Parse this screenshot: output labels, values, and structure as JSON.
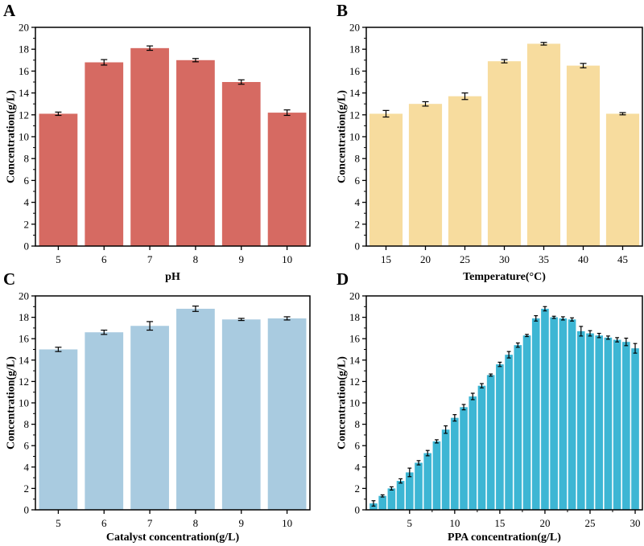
{
  "chart_data": [
    {
      "panel": "A",
      "type": "bar",
      "xlabel": "pH",
      "ylabel": "Concentration(g/L)",
      "ylim": [
        0,
        20
      ],
      "yticks": [
        0,
        2,
        4,
        6,
        8,
        10,
        12,
        14,
        16,
        18,
        20
      ],
      "categories": [
        "5",
        "6",
        "7",
        "8",
        "9",
        "10"
      ],
      "values": [
        12.1,
        16.8,
        18.1,
        17.0,
        15.0,
        12.2
      ],
      "errors": [
        0.15,
        0.25,
        0.2,
        0.15,
        0.2,
        0.25
      ],
      "color": "#d66a62"
    },
    {
      "panel": "B",
      "type": "bar",
      "xlabel": "Temperature(°C)",
      "ylabel": "Concentration(g/L)",
      "ylim": [
        0,
        20
      ],
      "yticks": [
        0,
        2,
        4,
        6,
        8,
        10,
        12,
        14,
        16,
        18,
        20
      ],
      "categories": [
        "15",
        "20",
        "25",
        "30",
        "35",
        "40",
        "45"
      ],
      "values": [
        12.1,
        13.0,
        13.7,
        16.9,
        18.5,
        16.5,
        12.1
      ],
      "errors": [
        0.3,
        0.2,
        0.3,
        0.15,
        0.12,
        0.2,
        0.1
      ],
      "color": "#f7dc9e"
    },
    {
      "panel": "C",
      "type": "bar",
      "xlabel": "Catalyst concentration(g/L)",
      "ylabel": "Concentration(g/L)",
      "ylim": [
        0,
        20
      ],
      "yticks": [
        0,
        2,
        4,
        6,
        8,
        10,
        12,
        14,
        16,
        18,
        20
      ],
      "categories": [
        "5",
        "6",
        "7",
        "8",
        "9",
        "10"
      ],
      "values": [
        15.0,
        16.6,
        17.2,
        18.8,
        17.8,
        17.9
      ],
      "errors": [
        0.2,
        0.2,
        0.4,
        0.25,
        0.1,
        0.15
      ],
      "color": "#a9cbe0"
    },
    {
      "panel": "D",
      "type": "bar",
      "xlabel": "PPA concentration(g/L)",
      "ylabel": "Concentration(g/L)",
      "ylim": [
        0,
        20
      ],
      "yticks": [
        0,
        2,
        4,
        6,
        8,
        10,
        12,
        14,
        16,
        18,
        20
      ],
      "xlim": [
        0.2,
        30.8
      ],
      "xticks": [
        5,
        10,
        15,
        20,
        25,
        30
      ],
      "x": [
        1,
        2,
        3,
        4,
        5,
        6,
        7,
        8,
        9,
        10,
        11,
        12,
        13,
        14,
        15,
        16,
        17,
        18,
        19,
        20,
        21,
        22,
        23,
        24,
        25,
        26,
        27,
        28,
        29,
        30
      ],
      "values": [
        0.6,
        1.3,
        2.0,
        2.7,
        3.5,
        4.4,
        5.3,
        6.4,
        7.5,
        8.6,
        9.6,
        10.6,
        11.6,
        12.6,
        13.6,
        14.5,
        15.4,
        16.3,
        17.9,
        18.8,
        18.0,
        17.9,
        17.8,
        16.7,
        16.5,
        16.3,
        16.1,
        15.9,
        15.7,
        15.1
      ],
      "errors": [
        0.25,
        0.1,
        0.15,
        0.2,
        0.4,
        0.2,
        0.25,
        0.15,
        0.35,
        0.3,
        0.25,
        0.3,
        0.2,
        0.1,
        0.2,
        0.3,
        0.2,
        0.1,
        0.25,
        0.2,
        0.1,
        0.15,
        0.15,
        0.45,
        0.25,
        0.2,
        0.15,
        0.2,
        0.35,
        0.45
      ],
      "color": "#3db6d4"
    }
  ]
}
